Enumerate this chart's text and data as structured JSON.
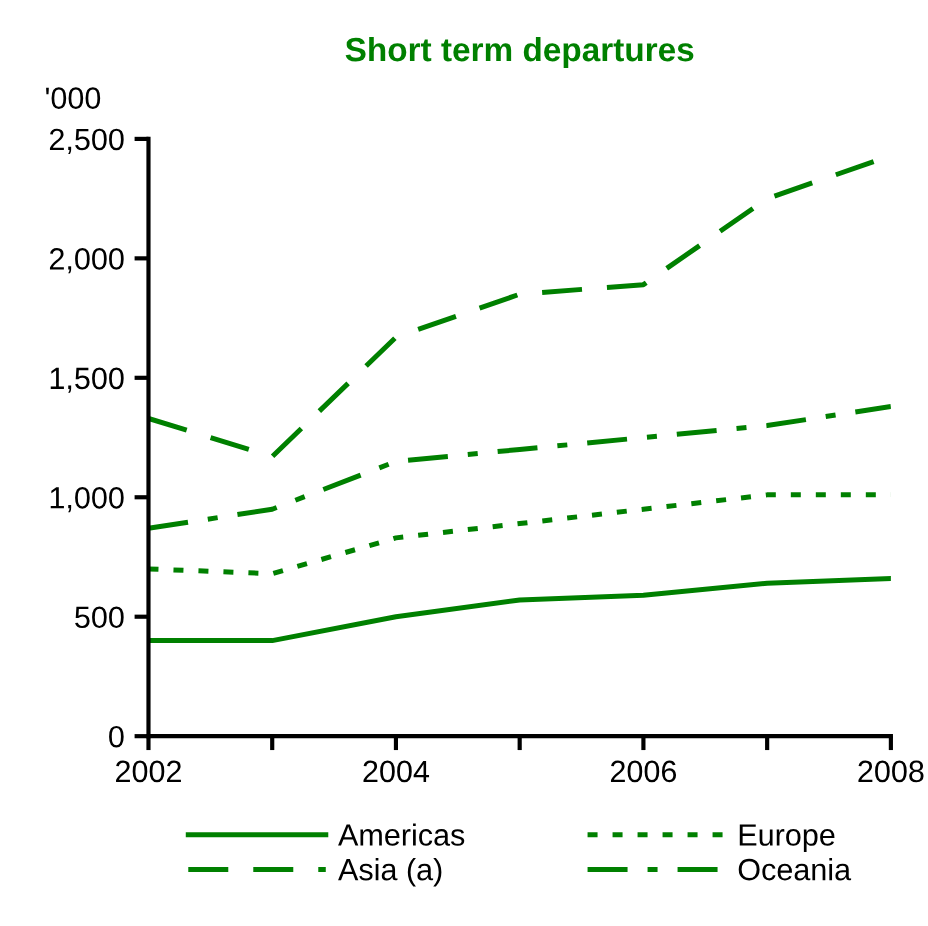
{
  "chart_data": {
    "type": "line",
    "title": "Short term departures",
    "ylabel": "'000",
    "x": [
      2002,
      2003,
      2004,
      2005,
      2006,
      2007,
      2008
    ],
    "series": [
      {
        "name": "Americas",
        "color": "#008000",
        "line_style": "solid",
        "values": [
          400,
          400,
          500,
          570,
          590,
          640,
          660
        ]
      },
      {
        "name": "Europe",
        "color": "#008000",
        "line_style": "dotted",
        "values": [
          700,
          680,
          830,
          890,
          950,
          1010,
          1010
        ]
      },
      {
        "name": "Asia (a)",
        "color": "#008000",
        "line_style": "dashed",
        "values": [
          1330,
          1170,
          1670,
          1850,
          1890,
          2250,
          2430
        ]
      },
      {
        "name": "Oceania",
        "color": "#008000",
        "line_style": "dashdot",
        "values": [
          870,
          950,
          1150,
          1200,
          1250,
          1300,
          1380
        ]
      }
    ],
    "xlim": [
      2002,
      2008
    ],
    "xticks": [
      2002,
      {
        "value": 2003,
        "label": null
      },
      2004,
      {
        "value": 2005,
        "label": null
      },
      2006,
      {
        "value": 2007,
        "label": null
      },
      2008
    ],
    "ylim": [
      0,
      2500
    ],
    "yticks": [
      {
        "value": 0,
        "label": "0"
      },
      {
        "value": 500,
        "label": "500"
      },
      {
        "value": 1000,
        "label": "1,000"
      },
      {
        "value": 1500,
        "label": "1,500"
      },
      {
        "value": 2000,
        "label": "2,000"
      },
      {
        "value": 2500,
        "label": "2,500"
      }
    ],
    "grid": false,
    "legend": "bottom",
    "marker": "none"
  }
}
